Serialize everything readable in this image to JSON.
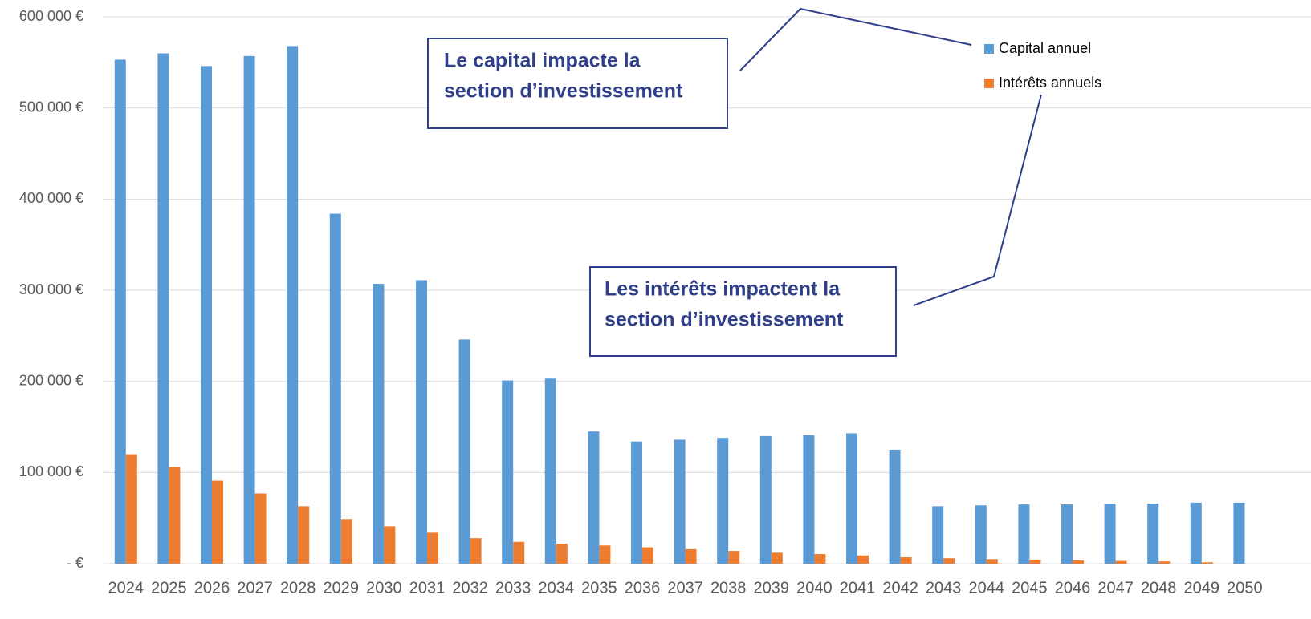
{
  "chart_data": {
    "type": "bar",
    "categories": [
      "2024",
      "2025",
      "2026",
      "2027",
      "2028",
      "2029",
      "2030",
      "2031",
      "2032",
      "2033",
      "2034",
      "2035",
      "2036",
      "2037",
      "2038",
      "2039",
      "2040",
      "2041",
      "2042",
      "2043",
      "2044",
      "2045",
      "2046",
      "2047",
      "2048",
      "2049",
      "2050"
    ],
    "series": [
      {
        "name": "Capital annuel",
        "color": "#5b9bd5",
        "values": [
          553000,
          560000,
          546000,
          557000,
          568000,
          384000,
          307000,
          311000,
          246000,
          201000,
          203000,
          145000,
          134000,
          136000,
          138000,
          140000,
          141000,
          143000,
          125000,
          63000,
          64000,
          65000,
          65000,
          66000,
          66000,
          67000,
          67000
        ]
      },
      {
        "name": "Intérêts annuels",
        "color": "#ed7d31",
        "values": [
          120000,
          106000,
          91000,
          77000,
          63000,
          49000,
          41000,
          34000,
          28000,
          24000,
          22000,
          20000,
          18000,
          16000,
          14000,
          12000,
          10500,
          9000,
          7000,
          6000,
          5000,
          4500,
          3500,
          3000,
          2500,
          1500,
          0
        ]
      }
    ],
    "ylim": [
      0,
      600000
    ],
    "yticks": [
      {
        "value": 0,
        "label": "-  €"
      },
      {
        "value": 100000,
        "label": "100 000 €"
      },
      {
        "value": 200000,
        "label": "200 000 €"
      },
      {
        "value": 300000,
        "label": "300 000 €"
      },
      {
        "value": 400000,
        "label": "400 000 €"
      },
      {
        "value": 500000,
        "label": "500 000 €"
      },
      {
        "value": 600000,
        "label": "600 000 €"
      }
    ],
    "grid": true,
    "annotations": [
      {
        "lines": [
          "Le capital impacte la",
          "section d’investissement"
        ]
      },
      {
        "lines": [
          "Les intérêts impactent la",
          "section d’investissement"
        ]
      }
    ]
  }
}
